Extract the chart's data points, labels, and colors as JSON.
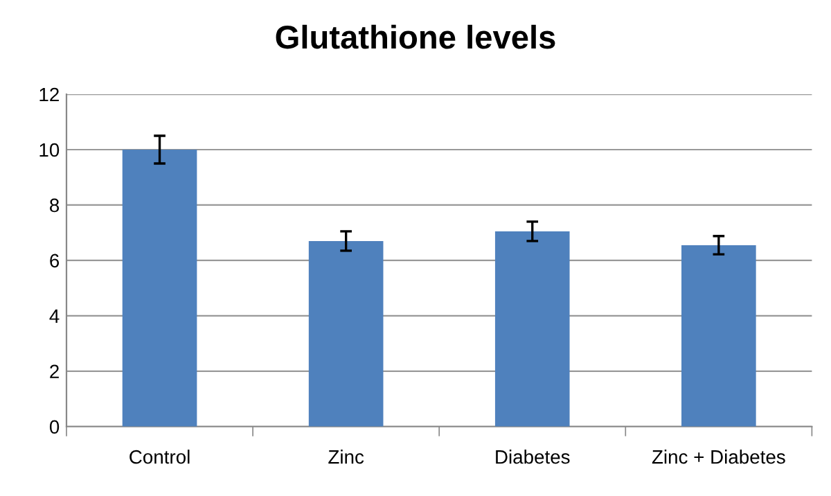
{
  "chart_data": {
    "type": "bar",
    "title": "Glutathione levels",
    "categories": [
      "Control",
      "Zinc",
      "Diabetes",
      "Zinc + Diabetes"
    ],
    "values": [
      10.0,
      6.7,
      7.05,
      6.55
    ],
    "errors": [
      0.5,
      0.35,
      0.35,
      0.33
    ],
    "color": "#4f81bd",
    "ylim": [
      0,
      12
    ],
    "yticks": [
      0,
      2,
      4,
      6,
      8,
      10,
      12
    ],
    "grid": "y"
  }
}
